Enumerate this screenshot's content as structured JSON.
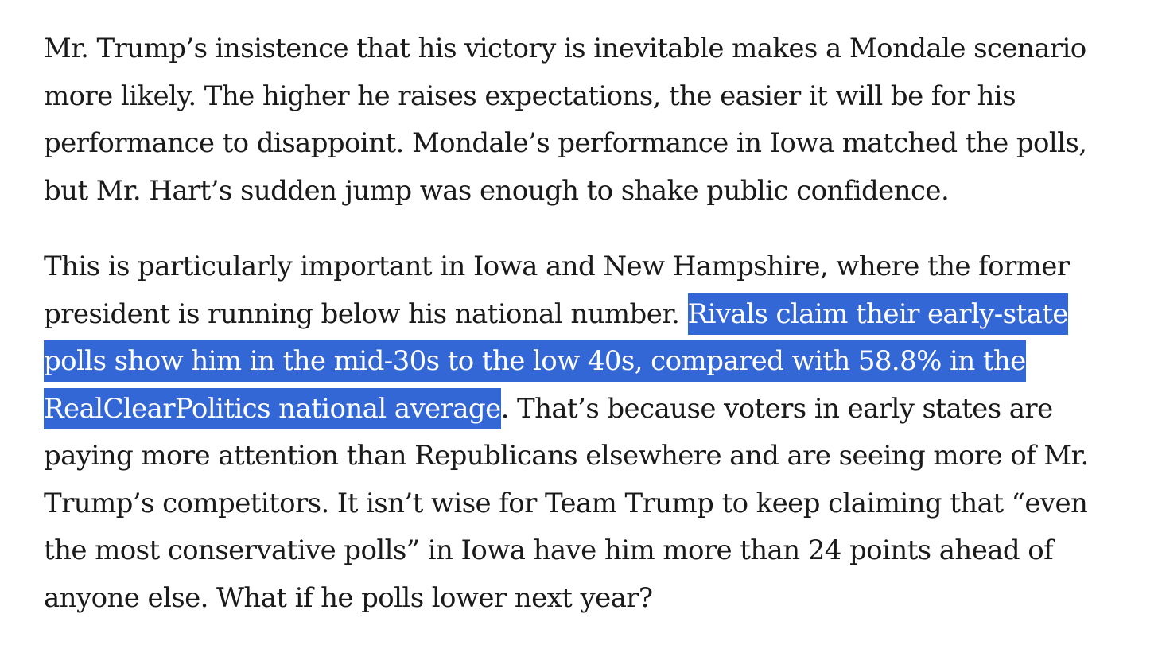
{
  "article": {
    "paragraphs": [
      {
        "before": "Mr. Trump’s insistence that his victory is inevitable makes a Mondale scenario more likely. The higher he raises expectations, the easier it will be for his performance to disappoint. Mondale’s performance in Iowa matched the polls, but Mr. Hart’s sudden jump was enough to shake public confidence.",
        "highlight": "",
        "after": ""
      },
      {
        "before": "This is particularly important in Iowa and New Hampshire, where the former president is running below his national number. ",
        "highlight": "Rivals claim their early-state polls show him in the mid-30s to the low 40s, compared with 58.8% in the RealClearPolitics national average",
        "after": ". That’s because voters in early states are paying more attention than Republicans elsewhere and are seeing more of Mr. Trump’s competitors. It isn’t wise for Team Trump to keep claiming that “even the most conservative polls” in Iowa have him more than 24 points ahead of anyone else. What if he polls lower next year?"
      }
    ],
    "selection_color": "#3467d6"
  }
}
